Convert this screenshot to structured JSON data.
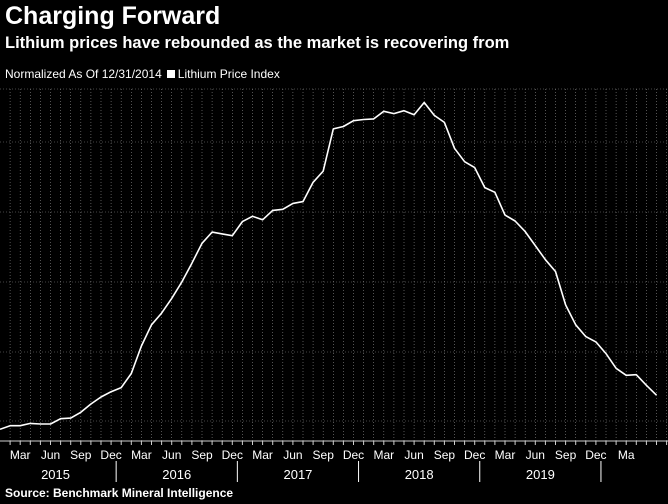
{
  "title": "Charging Forward",
  "subtitle": "Lithium prices have rebounded as the market is recovering from",
  "legend": {
    "prefix": "Normalized As Of 12/31/2014",
    "series_label": "Lithium Price Index"
  },
  "source": "Source: Benchmark Mineral Intelligence",
  "colors": {
    "background": "#000000",
    "line": "#ffffff",
    "grid": "#ffffff"
  },
  "chart_data": {
    "type": "line",
    "title": "Charging Forward",
    "subtitle": "Lithium prices have rebounded as the market is recovering from",
    "legend_placement": "top-left",
    "grid": true,
    "x_unit": "month index from Jan 2015",
    "month_tick_labels": [
      "Mar",
      "Jun",
      "Sep",
      "Dec",
      "Mar",
      "Jun",
      "Sep",
      "Dec",
      "Mar",
      "Jun",
      "Sep",
      "Dec",
      "Mar",
      "Jun",
      "Sep",
      "Dec",
      "Mar",
      "Jun",
      "Sep",
      "Dec",
      "Ma"
    ],
    "year_labels": [
      {
        "label": "2015",
        "mid": 6
      },
      {
        "label": "2016",
        "mid": 18
      },
      {
        "label": "2017",
        "mid": 30
      },
      {
        "label": "2018",
        "mid": 42
      },
      {
        "label": "2019",
        "mid": 54
      }
    ],
    "series": [
      {
        "name": "Lithium Price Index",
        "x": [
          0,
          1,
          2,
          3,
          4,
          5,
          6,
          7,
          8,
          9,
          10,
          11,
          12,
          13,
          14,
          15,
          16,
          17,
          18,
          19,
          20,
          21,
          22,
          23,
          24,
          25,
          26,
          27,
          28,
          29,
          30,
          31,
          32,
          33,
          34,
          35,
          36,
          37,
          38,
          39,
          40,
          41,
          42,
          43,
          44,
          45,
          46,
          47,
          48,
          49,
          50,
          51,
          52,
          53,
          54,
          55,
          56,
          57,
          58,
          59,
          60,
          61,
          62,
          63,
          64,
          65
        ],
        "values": [
          1.0,
          1.06,
          1.06,
          1.1,
          1.09,
          1.09,
          1.18,
          1.19,
          1.29,
          1.43,
          1.55,
          1.64,
          1.71,
          1.95,
          2.42,
          2.78,
          2.98,
          3.23,
          3.51,
          3.83,
          4.17,
          4.36,
          4.33,
          4.3,
          4.54,
          4.63,
          4.57,
          4.73,
          4.75,
          4.85,
          4.88,
          5.21,
          5.4,
          6.12,
          6.16,
          6.26,
          6.28,
          6.29,
          6.42,
          6.38,
          6.43,
          6.36,
          6.57,
          6.35,
          6.23,
          5.79,
          5.56,
          5.46,
          5.12,
          5.04,
          4.65,
          4.55,
          4.37,
          4.13,
          3.89,
          3.69,
          3.12,
          2.78,
          2.58,
          2.49,
          2.29,
          2.04,
          1.92,
          1.93,
          1.75,
          1.58
        ]
      }
    ]
  }
}
